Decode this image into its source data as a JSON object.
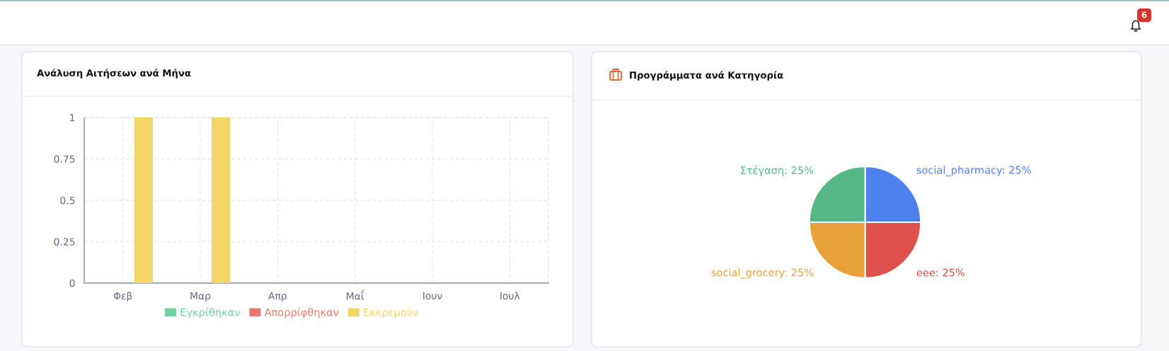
{
  "chart_data": [
    {
      "type": "bar",
      "title": "Ανάλυση Αιτήσεων ανά Μήνα",
      "categories": [
        "Φεβ",
        "Μαρ",
        "Απρ",
        "Μαΐ",
        "Ιουν",
        "Ιουλ"
      ],
      "series": [
        {
          "name": "Εγκρίθηκαν",
          "color": "#6dd3a0",
          "values": [
            0,
            0,
            0,
            0,
            0,
            0
          ]
        },
        {
          "name": "Απορρίφθηκαν",
          "color": "#ea786f",
          "values": [
            0,
            0,
            0,
            0,
            0,
            0
          ]
        },
        {
          "name": "Εκκρεμούν",
          "color": "#f5d565",
          "values": [
            1,
            1,
            0,
            0,
            0,
            0
          ]
        }
      ],
      "ylim": [
        0,
        1
      ],
      "yticks": [
        0,
        0.25,
        0.5,
        0.75,
        1
      ],
      "grid": true,
      "legend": "bottom"
    },
    {
      "type": "pie",
      "title": "Προγράμματα ανά Κατηγορία",
      "categories": [
        "social_pharmacy",
        "eee",
        "social_grocery",
        "Στέγαση"
      ],
      "values": [
        25,
        25,
        25,
        25
      ],
      "colors": [
        "#4f81ee",
        "#df514c",
        "#e9a23b",
        "#56b886"
      ],
      "value_labels": [
        "25%",
        "25%",
        "25%",
        "25%"
      ]
    },
    {
      "type": "other",
      "annotations": [
        "6"
      ]
    }
  ]
}
